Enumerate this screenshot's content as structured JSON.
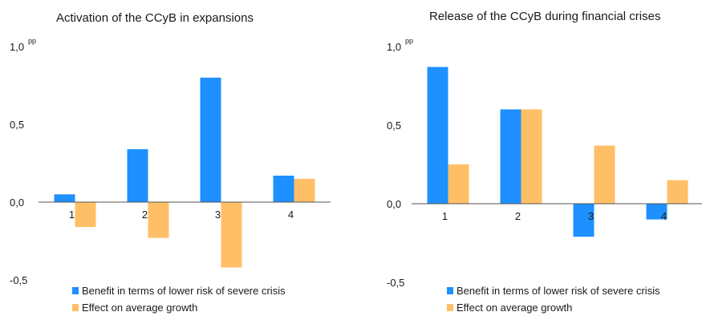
{
  "chart_data": [
    {
      "type": "bar",
      "title": "Activation of the CCyB in expansions",
      "unit": "pp",
      "categories": [
        "1",
        "2",
        "3",
        "4"
      ],
      "ylim": [
        -0.5,
        1.0
      ],
      "yticks": [
        "1,0",
        "0,5",
        "0,0",
        "-0,5"
      ],
      "series": [
        {
          "name": "Benefit in terms of lower risk of severe crisis",
          "color": "#1e90ff",
          "values": [
            0.05,
            0.34,
            0.8,
            0.17
          ]
        },
        {
          "name": "Effect on average growth",
          "color": "#ffbf66",
          "values": [
            -0.16,
            -0.23,
            -0.42,
            0.15
          ]
        }
      ],
      "legend": "bottom"
    },
    {
      "type": "bar",
      "title": "Release of the CCyB during financial crises",
      "unit": "pp",
      "categories": [
        "1",
        "2",
        "3",
        "4"
      ],
      "ylim": [
        -0.5,
        1.0
      ],
      "yticks": [
        "1,0",
        "0,5",
        "0,0",
        "-0,5"
      ],
      "series": [
        {
          "name": "Benefit in terms of lower risk of severe crisis",
          "color": "#1e90ff",
          "values": [
            0.87,
            0.6,
            -0.21,
            -0.1
          ]
        },
        {
          "name": "Effect on average growth",
          "color": "#ffbf66",
          "values": [
            0.25,
            0.6,
            0.37,
            0.15
          ]
        }
      ],
      "legend": "bottom"
    }
  ]
}
